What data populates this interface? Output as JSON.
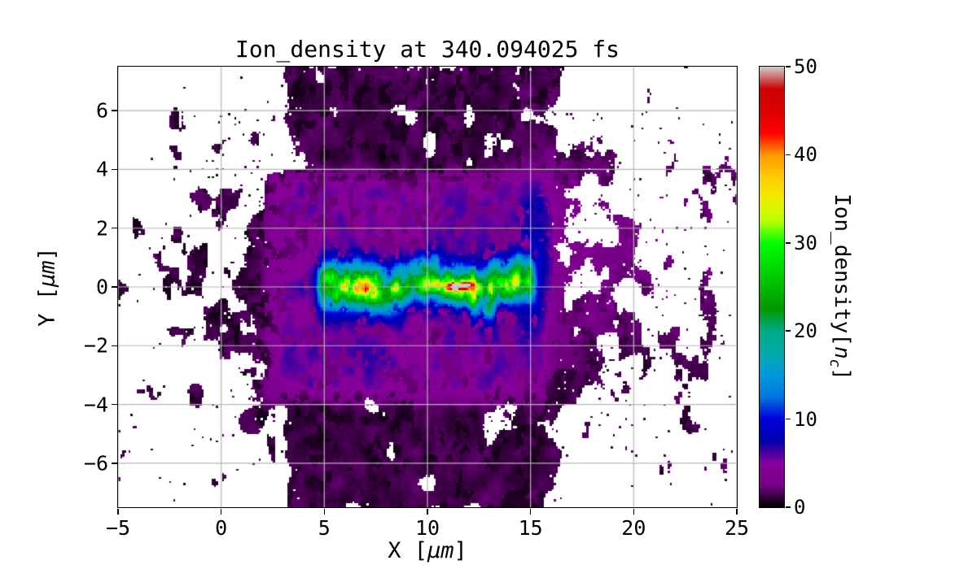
{
  "chart_data": {
    "type": "heatmap",
    "title": "Ion_density at 340.094025 fs",
    "xlabel": {
      "pre": "X [",
      "unit": "μm",
      "post": "]"
    },
    "ylabel": {
      "pre": "Y [",
      "unit": "μm",
      "post": "]"
    },
    "xlim": [
      -5,
      25
    ],
    "ylim": [
      -7.5,
      7.5
    ],
    "xticks": {
      "values": [
        -5,
        0,
        5,
        10,
        15,
        20,
        25
      ],
      "labels": [
        "−5",
        "0",
        "5",
        "10",
        "15",
        "20",
        "25"
      ]
    },
    "yticks": {
      "values": [
        -6,
        -4,
        -2,
        0,
        2,
        4,
        6
      ],
      "labels": [
        "−6",
        "−4",
        "−2",
        "0",
        "2",
        "4",
        "6"
      ]
    },
    "grid": {
      "show": true,
      "color": "#b6b6b6"
    },
    "background": "#ffffff",
    "colorbar": {
      "label": {
        "pre": "Ion_density[",
        "var": "n",
        "sub": "c",
        "post": "]"
      },
      "min": 0,
      "max": 50,
      "ticks": {
        "values": [
          0,
          10,
          20,
          30,
          40,
          50
        ],
        "labels": [
          "0",
          "10",
          "20",
          "30",
          "40",
          "50"
        ]
      },
      "colormap": "nipy_spectral",
      "stops": [
        [
          0.0,
          0.0,
          0.0,
          0.0
        ],
        [
          0.05,
          0.4667,
          0.0,
          0.5333
        ],
        [
          0.1,
          0.5333,
          0.0,
          0.6
        ],
        [
          0.15,
          0.0,
          0.0,
          0.6667
        ],
        [
          0.2,
          0.0,
          0.0,
          0.8667
        ],
        [
          0.25,
          0.0,
          0.4667,
          0.8667
        ],
        [
          0.3,
          0.0,
          0.6,
          0.8667
        ],
        [
          0.35,
          0.0,
          0.6667,
          0.6667
        ],
        [
          0.4,
          0.0,
          0.6667,
          0.5333
        ],
        [
          0.45,
          0.0,
          0.6,
          0.0
        ],
        [
          0.5,
          0.0,
          0.7333,
          0.0
        ],
        [
          0.55,
          0.0,
          0.8667,
          0.0
        ],
        [
          0.6,
          0.0,
          1.0,
          0.0
        ],
        [
          0.65,
          0.7333,
          1.0,
          0.0
        ],
        [
          0.7,
          0.9333,
          0.9333,
          0.0
        ],
        [
          0.75,
          1.0,
          0.8,
          0.0
        ],
        [
          0.8,
          1.0,
          0.6,
          0.0
        ],
        [
          0.85,
          1.0,
          0.0,
          0.0
        ],
        [
          0.9,
          0.8667,
          0.0,
          0.0
        ],
        [
          0.95,
          0.8,
          0.0,
          0.0
        ],
        [
          1.0,
          0.8,
          0.8,
          0.8
        ]
      ]
    },
    "field": {
      "seed": 7,
      "grid_nx": 304,
      "grid_ny": 217,
      "units": "n_c",
      "description": "Noisy 2D ion density map: magenta/purple plasma slab (≈3-7 n_c) spanning x≈2-16 μm, |y|<4 μm; speckled black low-density arms (≈0.5-2 n_c) above and below the slab for x≈3-16.5 μm reaching the frame edges; bright channel filament along y≈0 from x≈4.8 to 15.2 μm (blue edge, cyan/green core 15-30 n_c, yellow patches 35 n_c, red/saturated spots ≈50 n_c near x≈11.5); dilute purple plume (≈2-4 n_c) streaming right toward x=25 around y≈1.5; sparse speckle fringes out to x=-5; white = vacuum",
      "slab": {
        "x0": 2.35,
        "x1": 15.9,
        "y0": -3.75,
        "y1": 3.75,
        "base": 2.4,
        "noise_amp": 3.0
      },
      "halo": {
        "x0": 3.3,
        "x1": 16.4,
        "strength": 0.93
      },
      "filament": {
        "x0": 4.75,
        "x1": 15.15,
        "sigma": 0.4,
        "amp_base": 12,
        "amp_noise": 24
      },
      "plume": {
        "amp": 3.2,
        "y_center": 1.4,
        "decay": 8
      },
      "hotspots": [
        {
          "x": 11.45,
          "y": 0.0,
          "amp": 26,
          "sx": 0.33,
          "sy": 0.08
        },
        {
          "x": 11.95,
          "y": 0.08,
          "amp": 15,
          "sx": 0.22,
          "sy": 0.08
        },
        {
          "x": 8.55,
          "y": -0.05,
          "amp": 8,
          "sx": 0.3,
          "sy": 0.12
        },
        {
          "x": 10.45,
          "y": 0.1,
          "amp": 7,
          "sx": 0.25,
          "sy": 0.12
        }
      ]
    }
  }
}
